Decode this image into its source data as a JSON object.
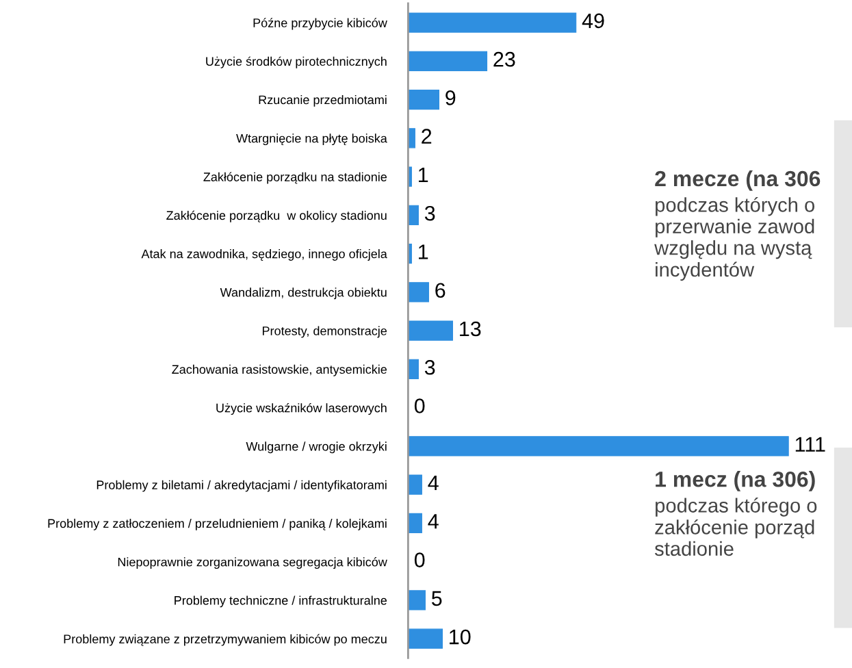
{
  "chart_data": {
    "type": "bar",
    "orientation": "horizontal",
    "data_labels": true,
    "color": "#2f8fe0",
    "categories": [
      "Późne przybycie kibiców",
      "Użycie środków pirotechnicznych",
      "Rzucanie przedmiotami",
      "Wtargnięcie na płytę boiska",
      "Zakłócenie porządku na stadionie",
      "Zakłócenie porządku  w okolicy stadionu",
      "Atak na zawodnika, sędziego, innego oficjela",
      "Wandalizm, destrukcja obiektu",
      "Protesty, demonstracje",
      "Zachowania rasistowskie, antysemickie",
      "Użycie wskaźników laserowych",
      "Wulgarne / wrogie okrzyki",
      "Problemy z biletami / akredytacjami / identyfikatorami",
      "Problemy z zatłoczeniem / przeludnieniem / paniką / kolejkami",
      "Niepoprawnie zorganizowana segregacja kibiców",
      "Problemy techniczne / infrastrukturalne",
      "Problemy związane z przetrzymywaniem kibiców po meczu"
    ],
    "values": [
      49,
      23,
      9,
      2,
      1,
      3,
      1,
      6,
      13,
      3,
      0,
      111,
      4,
      4,
      0,
      5,
      10
    ],
    "annotations": [
      "2 mecze (na 306\npodczas których o\nprzerwanie zawod\nwzględu na wystą\nincydentów",
      "1 mecz (na 306)\npodczas którego o\nzakłócenie porząd\nstadionie"
    ]
  }
}
